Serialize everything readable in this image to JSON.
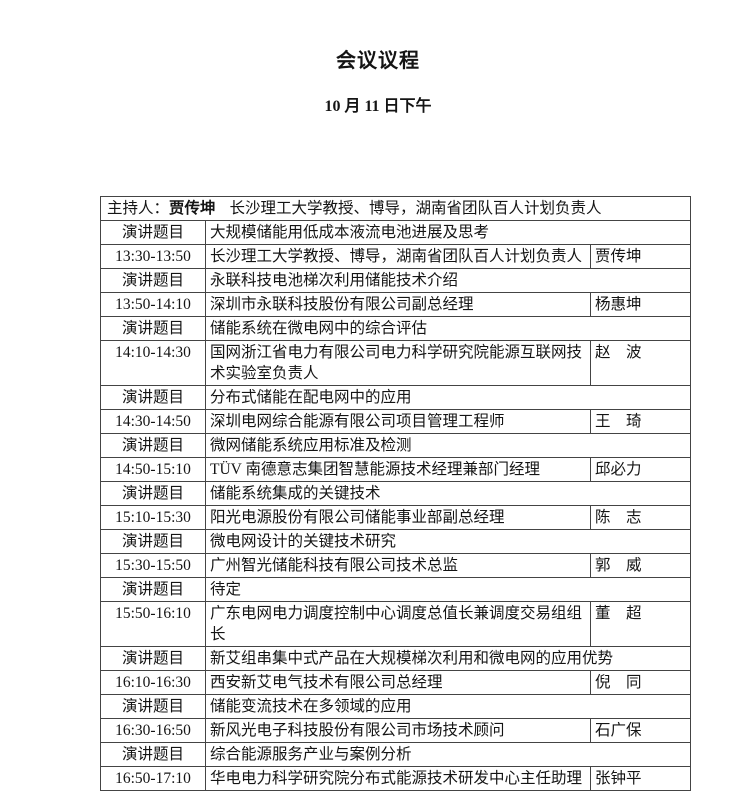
{
  "page": {
    "title": "会议议程",
    "date": "10 月 11 日下午"
  },
  "host": {
    "label": "主持人：",
    "name": "贾传坤",
    "description": "长沙理工大学教授、博导，湖南省团队百人计划负责人"
  },
  "table": {
    "topic_row_label": "演讲题目",
    "sessions": [
      {
        "topic": "大规模储能用低成本液流电池进展及思考",
        "time": "13:30-13:50",
        "affiliation": "长沙理工大学教授、博导，湖南省团队百人计划负责人",
        "speaker": "贾传坤"
      },
      {
        "topic": "永联科技电池梯次利用储能技术介绍",
        "time": "13:50-14:10",
        "affiliation": "深圳市永联科技股份有限公司副总经理",
        "speaker": "杨惠坤"
      },
      {
        "topic": "储能系统在微电网中的综合评估",
        "time": "14:10-14:30",
        "affiliation": "国网浙江省电力有限公司电力科学研究院能源互联网技术实验室负责人",
        "speaker": "赵　波"
      },
      {
        "topic": "分布式储能在配电网中的应用",
        "time": "14:30-14:50",
        "affiliation": "深圳电网综合能源有限公司项目管理工程师",
        "speaker": "王　琦"
      },
      {
        "topic": "微网储能系统应用标准及检测",
        "time": "14:50-15:10",
        "affiliation": "TÜV 南德意志集团智慧能源技术经理兼部门经理",
        "speaker": "邱必力"
      },
      {
        "topic": "储能系统集成的关键技术",
        "time": "15:10-15:30",
        "affiliation": "阳光电源股份有限公司储能事业部副总经理",
        "speaker": "陈　志"
      },
      {
        "topic": "微电网设计的关键技术研究",
        "time": "15:30-15:50",
        "affiliation": "广州智光储能科技有限公司技术总监",
        "speaker": "郭　威"
      },
      {
        "topic": "待定",
        "time": "15:50-16:10",
        "affiliation": "广东电网电力调度控制中心调度总值长兼调度交易组组长",
        "speaker": "董　超"
      },
      {
        "topic": "新艾组串集中式产品在大规模梯次利用和微电网的应用优势",
        "time": "16:10-16:30",
        "affiliation": "西安新艾电气技术有限公司总经理",
        "speaker": "倪　同"
      },
      {
        "topic": "储能变流技术在多领域的应用",
        "time": "16:30-16:50",
        "affiliation": "新风光电子科技股份有限公司市场技术顾问",
        "speaker": "石广保"
      },
      {
        "topic": "综合能源服务产业与案例分析",
        "time": "16:50-17:10",
        "affiliation": "华电电力科学研究院分布式能源技术研发中心主任助理",
        "speaker": "张钟平"
      }
    ]
  }
}
